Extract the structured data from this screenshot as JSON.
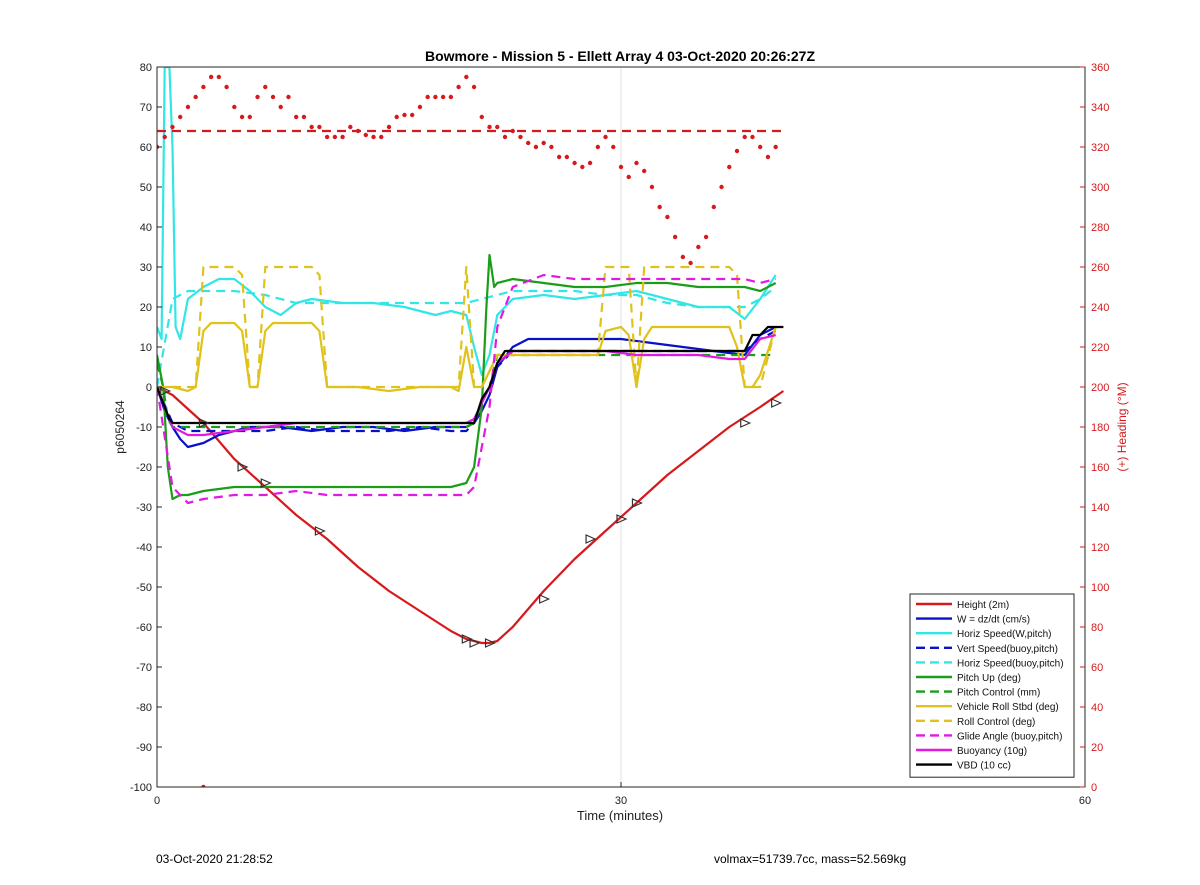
{
  "chart_data": {
    "type": "line",
    "title": "Bowmore - Mission 5 - Ellett Array 4 03-Oct-2020 20:26:27Z",
    "xlabel": "Time (minutes)",
    "ylabel": "p6050264",
    "y2label": "(+) Heading (°M)",
    "xlim": [
      0,
      60
    ],
    "ylim": [
      -100,
      80
    ],
    "y2lim": [
      0,
      360
    ],
    "xticks": [
      0,
      30,
      60
    ],
    "yticks": [
      80,
      70,
      60,
      50,
      40,
      30,
      20,
      10,
      0,
      -10,
      -20,
      -30,
      -40,
      -50,
      -60,
      -70,
      -80,
      -90,
      -100
    ],
    "y2ticks": [
      360,
      340,
      320,
      300,
      280,
      260,
      240,
      220,
      200,
      180,
      160,
      140,
      120,
      100,
      80,
      60,
      40,
      20,
      0
    ],
    "grid": "x",
    "legend_position": "bottom-right",
    "colors": {
      "height": "#d7191c",
      "w": "#0a10c8",
      "cyan": "#33e6e6",
      "green": "#1a9e1a",
      "yellow": "#e0c21a",
      "magenta": "#e01ae0",
      "black": "#000000",
      "heading": "#d7191c"
    },
    "series": [
      {
        "name": "Height (2m)",
        "color": "#d7191c",
        "style": "solid",
        "x": [
          0,
          1,
          3,
          5,
          7,
          9,
          11,
          13,
          15,
          17,
          19,
          20,
          20.5,
          21,
          21.5,
          22,
          23,
          25,
          27,
          29,
          31,
          33,
          35,
          37,
          39,
          40.5
        ],
        "y": [
          0,
          -2,
          -9,
          -18,
          -25,
          -32,
          -38,
          -45,
          -51,
          -56,
          -61,
          -63,
          -63.5,
          -64,
          -64,
          -63.5,
          -60,
          -51,
          -43,
          -36,
          -29,
          -22,
          -16,
          -10,
          -5,
          -1
        ]
      },
      {
        "name": "W = dz/dt (cm/s)",
        "color": "#0a10c8",
        "style": "solid",
        "x": [
          0,
          0.5,
          1,
          1.5,
          2,
          3,
          4,
          5,
          6,
          7,
          8,
          10,
          12,
          14,
          16,
          18,
          20,
          20.5,
          21,
          21.5,
          22,
          23,
          24,
          26,
          28,
          30,
          32,
          34,
          36,
          38,
          39,
          40
        ],
        "y": [
          0,
          -6,
          -10,
          -13,
          -15,
          -14,
          -12,
          -11,
          -10,
          -10,
          -10,
          -11,
          -10,
          -10,
          -11,
          -10,
          -10,
          -9,
          -6,
          -2,
          5,
          10,
          12,
          12,
          12,
          12,
          11,
          10,
          9,
          8,
          13,
          15
        ]
      },
      {
        "name": "Horiz Speed(W,pitch)",
        "color": "#33e6e6",
        "style": "solid",
        "x": [
          0,
          0.3,
          0.5,
          0.8,
          1,
          1.2,
          1.5,
          2,
          3,
          4,
          5,
          6,
          7,
          8,
          9,
          10,
          12,
          14,
          16,
          18,
          19,
          20,
          20.5,
          21,
          21.5,
          22,
          23,
          25,
          27,
          29,
          31,
          33,
          35,
          37,
          38,
          39,
          40
        ],
        "y": [
          15,
          12,
          80,
          80,
          60,
          15,
          12,
          22,
          25,
          27,
          27,
          24,
          20,
          18,
          21,
          22,
          21,
          21,
          20,
          18,
          19,
          18,
          10,
          3,
          8,
          18,
          22,
          23,
          22,
          23,
          24,
          22,
          20,
          20,
          17,
          22,
          28
        ]
      },
      {
        "name": "Vert Speed(buoy,pitch)",
        "color": "#0a10c8",
        "style": "dashed",
        "x": [
          0,
          1,
          2,
          3,
          5,
          7,
          9,
          11,
          13,
          15,
          17,
          19,
          20,
          20.5,
          21,
          21.5,
          22,
          23,
          25,
          27,
          29,
          31,
          33,
          35,
          37,
          38,
          39,
          40
        ],
        "y": [
          0,
          -9,
          -11,
          -11,
          -11,
          -11,
          -10,
          -11,
          -11,
          -11,
          -10,
          -11,
          -11,
          -9,
          -4,
          0,
          5,
          9,
          9,
          9,
          9,
          9,
          9,
          9,
          9,
          9,
          12,
          14
        ]
      },
      {
        "name": "Horiz Speed(buoy,pitch)",
        "color": "#33e6e6",
        "style": "dashed",
        "x": [
          0,
          1,
          2,
          3,
          5,
          7,
          9,
          11,
          13,
          15,
          17,
          19,
          20,
          21,
          22,
          23,
          25,
          27,
          29,
          31,
          33,
          35,
          37,
          38,
          39,
          40
        ],
        "y": [
          0,
          22,
          24,
          24,
          24,
          23,
          21,
          21,
          21,
          21,
          21,
          21,
          21,
          22,
          23,
          24,
          24,
          24,
          23,
          23,
          21,
          20,
          20,
          20,
          22,
          25
        ]
      },
      {
        "name": "Pitch Up (deg)",
        "color": "#1a9e1a",
        "style": "solid",
        "x": [
          0,
          0.4,
          0.7,
          1,
          1.5,
          2,
          3,
          5,
          7,
          9,
          11,
          13,
          15,
          17,
          19,
          20,
          20.5,
          21,
          21.3,
          21.5,
          21.8,
          22,
          23,
          25,
          27,
          29,
          31,
          33,
          35,
          37,
          38,
          39,
          40
        ],
        "y": [
          8,
          0,
          -20,
          -28,
          -27,
          -27,
          -26,
          -25,
          -25,
          -25,
          -25,
          -25,
          -25,
          -25,
          -25,
          -24,
          -20,
          -5,
          20,
          33,
          25,
          26,
          27,
          26,
          25,
          25,
          26,
          26,
          25,
          25,
          25,
          24,
          26
        ]
      },
      {
        "name": "Pitch Control (mm)",
        "color": "#1a9e1a",
        "style": "dashed",
        "x": [
          0,
          0.4,
          0.7,
          1,
          5,
          10,
          15,
          20,
          20.5,
          21,
          21.5,
          22,
          25,
          30,
          35,
          38,
          39,
          40
        ],
        "y": [
          6,
          0,
          -8,
          -10,
          -10,
          -10,
          -10,
          -10,
          -9,
          -4,
          0,
          8,
          8,
          8,
          8,
          8,
          8,
          8
        ]
      },
      {
        "name": "Vehicle Roll Stbd (deg)",
        "color": "#e0c21a",
        "style": "solid",
        "x": [
          0,
          1,
          2,
          2.5,
          3,
          3.5,
          5,
          5.5,
          6,
          6.5,
          7,
          7.5,
          10,
          10.5,
          11,
          13,
          15,
          17,
          19,
          19.5,
          20,
          20.5,
          21,
          22,
          25,
          28,
          28.5,
          29,
          30,
          30.5,
          31,
          31.5,
          32,
          35,
          37,
          37.5,
          38,
          38.5,
          39,
          40
        ],
        "y": [
          0,
          0,
          -1,
          0,
          14,
          16,
          16,
          14,
          0,
          0,
          14,
          16,
          16,
          14,
          0,
          0,
          -1,
          0,
          0,
          -1,
          10,
          0,
          0,
          8,
          8,
          8,
          8,
          14,
          15,
          13,
          0,
          12,
          15,
          15,
          15,
          10,
          0,
          0,
          3,
          15
        ]
      },
      {
        "name": "Roll Control (deg)",
        "color": "#e0c21a",
        "style": "dashed",
        "x": [
          0,
          1,
          2,
          2.5,
          3,
          5,
          5.5,
          6,
          6.5,
          7,
          10,
          10.5,
          11,
          19,
          19.5,
          20,
          20.5,
          21,
          22,
          25,
          28,
          28.5,
          29,
          30,
          30.5,
          31,
          31.5,
          32,
          37,
          37.5,
          38,
          39,
          40
        ],
        "y": [
          0,
          0,
          0,
          0,
          30,
          30,
          28,
          0,
          0,
          30,
          30,
          28,
          0,
          0,
          0,
          30,
          0,
          0,
          8,
          8,
          8,
          8,
          30,
          30,
          30,
          0,
          30,
          30,
          30,
          28,
          0,
          0,
          15
        ]
      },
      {
        "name": "Glide Angle (buoy,pitch)",
        "color": "#e01ae0",
        "style": "dashed",
        "x": [
          0,
          1,
          2,
          3,
          5,
          7,
          9,
          11,
          13,
          15,
          17,
          19,
          20,
          20.5,
          21,
          21.5,
          22,
          23,
          25,
          27,
          29,
          31,
          33,
          35,
          37,
          38,
          39,
          40
        ],
        "y": [
          0,
          -25,
          -29,
          -28,
          -27,
          -27,
          -26,
          -27,
          -27,
          -27,
          -27,
          -27,
          -27,
          -25,
          -15,
          -5,
          15,
          25,
          28,
          27,
          27,
          27,
          27,
          27,
          27,
          27,
          26,
          27
        ]
      },
      {
        "name": "Buoyancy (10g)",
        "color": "#e01ae0",
        "style": "solid",
        "x": [
          0,
          1,
          2,
          3,
          5,
          7,
          9,
          11,
          13,
          15,
          17,
          19,
          20,
          20.5,
          21,
          21.5,
          22,
          23,
          25,
          27,
          29,
          31,
          33,
          35,
          37,
          38,
          39,
          40
        ],
        "y": [
          0,
          -10,
          -12,
          -12,
          -11,
          -10,
          -9,
          -9,
          -9,
          -9,
          -9,
          -9,
          -9,
          -8,
          -4,
          0,
          6,
          9,
          9,
          9,
          9,
          8,
          8,
          8,
          7,
          7,
          12,
          13
        ]
      },
      {
        "name": "VBD (10 cc)",
        "color": "#000000",
        "style": "solid",
        "x": [
          0,
          0.5,
          0.8,
          1,
          1.2,
          5,
          10,
          15,
          20,
          20.5,
          21,
          21.5,
          22,
          22.5,
          23,
          25,
          30,
          35,
          37,
          38,
          38.5,
          39,
          39.5,
          40,
          40.5
        ],
        "y": [
          0,
          -5,
          -8,
          -9,
          -9,
          -9,
          -9,
          -9,
          -9,
          -9,
          -3,
          0,
          6,
          9,
          9,
          9,
          9,
          9,
          9,
          9,
          13,
          13,
          15,
          15,
          15
        ]
      },
      {
        "name": "Heading",
        "color": "#d7191c",
        "style": "dotted-points",
        "axis": "right",
        "x": [
          0,
          0.5,
          1,
          1.5,
          2,
          2.5,
          3,
          3.5,
          4,
          4.5,
          5,
          5.5,
          6,
          6.5,
          7,
          7.5,
          8,
          8.5,
          9,
          9.5,
          10,
          10.5,
          11,
          11.5,
          12,
          12.5,
          13,
          13.5,
          14,
          14.5,
          15,
          15.5,
          16,
          16.5,
          17,
          17.5,
          18,
          18.5,
          19,
          19.5,
          20,
          20.5,
          21,
          21.5,
          22,
          22.5,
          23,
          23.5,
          24,
          24.5,
          25,
          25.5,
          26,
          26.5,
          27,
          27.5,
          28,
          28.5,
          29,
          29.5,
          30,
          30.5,
          31,
          31.5,
          32,
          32.5,
          33,
          33.5,
          34,
          34.5,
          35,
          35.5,
          36,
          36.5,
          37,
          37.5,
          38,
          38.5,
          39,
          39.5,
          40
        ],
        "y": [
          320,
          325,
          330,
          335,
          340,
          345,
          350,
          355,
          355,
          350,
          340,
          335,
          335,
          345,
          350,
          345,
          340,
          345,
          335,
          335,
          330,
          330,
          325,
          325,
          325,
          330,
          328,
          326,
          325,
          325,
          330,
          335,
          336,
          336,
          340,
          345,
          345,
          345,
          345,
          350,
          355,
          350,
          335,
          330,
          330,
          325,
          328,
          325,
          322,
          320,
          322,
          320,
          315,
          315,
          312,
          310,
          312,
          320,
          325,
          320,
          310,
          305,
          312,
          308,
          300,
          290,
          285,
          275,
          265,
          262,
          270,
          275,
          290,
          300,
          310,
          318,
          325,
          325,
          320,
          315,
          320
        ]
      },
      {
        "name": "Heading target",
        "color": "#d7191c",
        "style": "dashed",
        "axis": "right",
        "x": [
          0,
          40.5
        ],
        "y": [
          328,
          328
        ]
      }
    ],
    "legend_entries": [
      "Height (2m)",
      "W = dz/dt (cm/s)",
      "Horiz Speed(W,pitch)",
      "Vert Speed(buoy,pitch)",
      "Horiz Speed(buoy,pitch)",
      "Pitch Up (deg)",
      "Pitch Control (mm)",
      "Vehicle Roll Stbd (deg)",
      "Roll Control (deg)",
      "Glide Angle (buoy,pitch)",
      "Buoyancy (10g)",
      "VBD (10 cc)"
    ],
    "marker_points": {
      "x": [
        0.5,
        3,
        5.5,
        7,
        10.5,
        20,
        20.5,
        21.5,
        25,
        28,
        30,
        31,
        38,
        40
      ],
      "y": [
        -1,
        -9,
        -20,
        -24,
        -36,
        -63,
        -64,
        -64,
        -53,
        -38,
        -33,
        -29,
        -9,
        -4
      ]
    }
  },
  "footer": {
    "left": "03-Oct-2020 21:28:52",
    "right": "volmax=51739.7cc, mass=52.569kg"
  }
}
